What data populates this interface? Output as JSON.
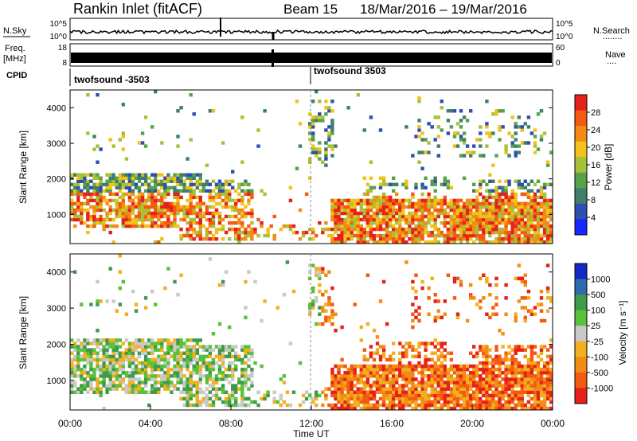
{
  "header": {
    "station": "Rankin Inlet (fitACF)",
    "beam": "Beam 15",
    "date_range": "18/Mar/2016 – 19/Mar/2016"
  },
  "side_labels": {
    "nsky": "N.Sky",
    "freq_1": "Freq.",
    "freq_2": "[MHz]",
    "cpid": "CPID",
    "nsearch": "N.Search",
    "nsearch_dots": "........",
    "nave": "Nave",
    "nave_dots": "...."
  },
  "colors": {
    "power_scale": [
      "#1428ff",
      "#2f4fb0",
      "#3f7f6a",
      "#57a24a",
      "#a7c13a",
      "#f0c21a",
      "#f28c16",
      "#f45a12",
      "#e6201a"
    ],
    "velocity_scale": [
      "#e6201a",
      "#f45a12",
      "#f28c16",
      "#f2b01e",
      "#c9c9c9",
      "#57c23a",
      "#3f9a4a",
      "#2f6ab0",
      "#1428c8"
    ]
  },
  "chart_data": [
    {
      "type": "line",
      "title": "N.Sky / N.Search",
      "left_ticks": [
        "10^5",
        "10^0"
      ],
      "right_ticks": [
        "10^5",
        "10^0"
      ],
      "x_ticks": [
        "00:00",
        "04:00",
        "08:00",
        "12:00",
        "16:00",
        "20:00",
        "00:00"
      ],
      "events": [
        {
          "time": "07:40",
          "desc": "spike"
        },
        {
          "time": "10:10",
          "desc": "dip"
        }
      ]
    },
    {
      "type": "line",
      "title": "Freq. [MHz] / Nave",
      "left_ticks": [
        "18",
        "8"
      ],
      "right_ticks": [
        "60",
        "0"
      ],
      "value_band": "alternating between two frequencies across the whole interval"
    },
    {
      "type": "table",
      "title": "CPID",
      "segments": [
        {
          "start": "00:00",
          "end": "12:00",
          "label": "twofsound -3503"
        },
        {
          "start": "12:00",
          "end": "24:00",
          "label": "twofsound 3503"
        }
      ]
    },
    {
      "type": "heatmap",
      "ylabel": "Slant Range [km]",
      "y_ticks": [
        "1000",
        "2000",
        "3000",
        "4000"
      ],
      "ylim": [
        180,
        4500
      ],
      "xlim_hours": [
        0,
        24
      ],
      "colorbar_label": "Power [dB]",
      "colorbar_ticks": [
        "28",
        "24",
        "20",
        "16",
        "12",
        "8",
        "4"
      ]
    },
    {
      "type": "heatmap",
      "ylabel": "Slant Range [km]",
      "y_ticks": [
        "1000",
        "2000",
        "3000",
        "4000"
      ],
      "ylim": [
        180,
        4500
      ],
      "xlim_hours": [
        0,
        24
      ],
      "xlabel": "Time UT",
      "x_ticks": [
        "00:00",
        "04:00",
        "08:00",
        "12:00",
        "16:00",
        "20:00",
        "00:00"
      ],
      "colorbar_label": "Velocity [m s⁻¹]",
      "colorbar_ticks": [
        "1000",
        "500",
        "100",
        "25",
        "-25",
        "-100",
        "-500",
        "-1000"
      ]
    }
  ]
}
